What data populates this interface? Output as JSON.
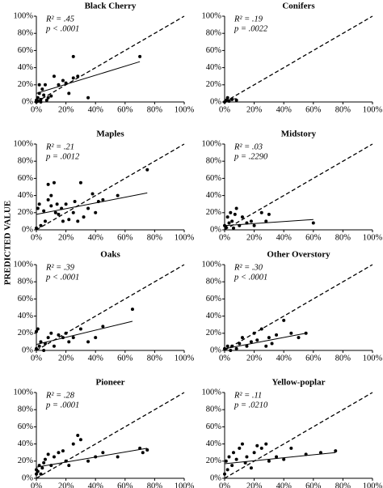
{
  "ylabel": "PREDICTED VALUE",
  "chart_data": [
    {
      "type": "scatter",
      "title": "Black Cherry",
      "annotations": [
        "R² = .45",
        "p < .0001"
      ],
      "x": [
        0,
        1,
        2,
        2,
        3,
        4,
        5,
        6,
        7,
        8,
        10,
        12,
        15,
        18,
        20,
        22,
        25,
        25,
        28,
        35,
        70,
        0,
        1,
        3
      ],
      "values": [
        2,
        5,
        20,
        10,
        3,
        15,
        8,
        20,
        2,
        5,
        7,
        30,
        20,
        25,
        22,
        10,
        53,
        28,
        30,
        5,
        53,
        0,
        1,
        0
      ],
      "fit_line": {
        "x": [
          0,
          70
        ],
        "values": [
          10,
          47
        ]
      },
      "reference_line": {
        "x": [
          0,
          100
        ],
        "values": [
          0,
          100
        ]
      },
      "xlim": [
        0,
        100
      ],
      "ylim": [
        0,
        100
      ],
      "xticks": [
        {
          "value": 0,
          "label": "0%"
        },
        {
          "value": 20,
          "label": "20%"
        },
        {
          "value": 40,
          "label": "40%"
        },
        {
          "value": 60,
          "label": "60%"
        },
        {
          "value": 80,
          "label": "80%"
        },
        {
          "value": 100,
          "label": "100%"
        }
      ],
      "yticks": [
        {
          "value": 0,
          "label": "0%"
        },
        {
          "value": 20,
          "label": "20%"
        },
        {
          "value": 40,
          "label": "40%"
        },
        {
          "value": 60,
          "label": "60%"
        },
        {
          "value": 80,
          "label": "80%"
        },
        {
          "value": 100,
          "label": "100%"
        }
      ]
    },
    {
      "type": "scatter",
      "title": "Conifers",
      "annotations": [
        "R² = .19",
        "p = .0022"
      ],
      "x": [
        0,
        1,
        2,
        3,
        5,
        8
      ],
      "values": [
        0,
        2,
        5,
        1,
        3,
        2
      ],
      "fit_line": {
        "x": [
          0,
          8
        ],
        "values": [
          2,
          4
        ]
      },
      "reference_line": {
        "x": [
          0,
          100
        ],
        "values": [
          0,
          100
        ]
      },
      "xlim": [
        0,
        100
      ],
      "ylim": [
        0,
        100
      ],
      "xticks": [
        {
          "value": 0,
          "label": "0%"
        },
        {
          "value": 20,
          "label": "20%"
        },
        {
          "value": 40,
          "label": "40%"
        },
        {
          "value": 60,
          "label": "60%"
        },
        {
          "value": 80,
          "label": "80%"
        },
        {
          "value": 100,
          "label": "100%"
        }
      ],
      "yticks": [
        {
          "value": 0,
          "label": "0%"
        },
        {
          "value": 20,
          "label": "20%"
        },
        {
          "value": 40,
          "label": "40%"
        },
        {
          "value": 60,
          "label": "60%"
        },
        {
          "value": 80,
          "label": "80%"
        },
        {
          "value": 100,
          "label": "100%"
        }
      ]
    },
    {
      "type": "scatter",
      "title": "Maples",
      "annotations": [
        "R² = .21",
        "p = .0012"
      ],
      "x": [
        0,
        1,
        2,
        3,
        5,
        6,
        8,
        8,
        10,
        10,
        12,
        13,
        14,
        15,
        17,
        18,
        20,
        22,
        25,
        26,
        28,
        30,
        32,
        35,
        38,
        40,
        42,
        45,
        55,
        75
      ],
      "values": [
        2,
        25,
        30,
        5,
        22,
        10,
        35,
        53,
        40,
        28,
        55,
        20,
        30,
        18,
        25,
        10,
        30,
        12,
        20,
        33,
        10,
        55,
        15,
        25,
        42,
        20,
        33,
        35,
        40,
        70
      ],
      "fit_line": {
        "x": [
          0,
          75
        ],
        "values": [
          18,
          43
        ]
      },
      "reference_line": {
        "x": [
          0,
          100
        ],
        "values": [
          0,
          100
        ]
      },
      "xlim": [
        0,
        100
      ],
      "ylim": [
        0,
        100
      ],
      "xticks": [
        {
          "value": 0,
          "label": "0%"
        },
        {
          "value": 20,
          "label": "20%"
        },
        {
          "value": 40,
          "label": "40%"
        },
        {
          "value": 60,
          "label": "60%"
        },
        {
          "value": 80,
          "label": "80%"
        },
        {
          "value": 100,
          "label": "100%"
        }
      ],
      "yticks": [
        {
          "value": 0,
          "label": "0%"
        },
        {
          "value": 20,
          "label": "20%"
        },
        {
          "value": 40,
          "label": "40%"
        },
        {
          "value": 60,
          "label": "60%"
        },
        {
          "value": 80,
          "label": "80%"
        },
        {
          "value": 100,
          "label": "100%"
        }
      ]
    },
    {
      "type": "scatter",
      "title": "Midstory",
      "annotations": [
        "R² = .03",
        "p = .2290"
      ],
      "x": [
        0,
        1,
        2,
        3,
        4,
        5,
        6,
        7,
        8,
        10,
        12,
        15,
        18,
        20,
        25,
        28,
        30,
        60
      ],
      "values": [
        5,
        3,
        15,
        8,
        20,
        10,
        2,
        18,
        25,
        5,
        15,
        8,
        10,
        5,
        20,
        10,
        18,
        8
      ],
      "fit_line": {
        "x": [
          0,
          60
        ],
        "values": [
          5,
          12
        ]
      },
      "reference_line": {
        "x": [
          0,
          100
        ],
        "values": [
          0,
          100
        ]
      },
      "xlim": [
        0,
        100
      ],
      "ylim": [
        0,
        100
      ],
      "xticks": [
        {
          "value": 0,
          "label": "0%"
        },
        {
          "value": 20,
          "label": "20%"
        },
        {
          "value": 40,
          "label": "40%"
        },
        {
          "value": 60,
          "label": "60%"
        },
        {
          "value": 80,
          "label": "80%"
        },
        {
          "value": 100,
          "label": "100%"
        }
      ],
      "yticks": [
        {
          "value": 0,
          "label": "0%"
        },
        {
          "value": 20,
          "label": "20%"
        },
        {
          "value": 40,
          "label": "40%"
        },
        {
          "value": 60,
          "label": "60%"
        },
        {
          "value": 80,
          "label": "80%"
        },
        {
          "value": 100,
          "label": "100%"
        }
      ]
    },
    {
      "type": "scatter",
      "title": "Oaks",
      "annotations": [
        "R² = .39",
        "p < .0001"
      ],
      "x": [
        0,
        0,
        1,
        2,
        3,
        5,
        6,
        8,
        10,
        12,
        15,
        18,
        20,
        22,
        25,
        30,
        35,
        40,
        45,
        65
      ],
      "values": [
        2,
        22,
        25,
        5,
        10,
        0,
        8,
        15,
        20,
        5,
        18,
        15,
        20,
        10,
        15,
        25,
        10,
        15,
        28,
        48
      ],
      "fit_line": {
        "x": [
          0,
          65
        ],
        "values": [
          7,
          34
        ]
      },
      "reference_line": {
        "x": [
          0,
          100
        ],
        "values": [
          0,
          100
        ]
      },
      "xlim": [
        0,
        100
      ],
      "ylim": [
        0,
        100
      ],
      "xticks": [
        {
          "value": 0,
          "label": "0%"
        },
        {
          "value": 20,
          "label": "20%"
        },
        {
          "value": 40,
          "label": "40%"
        },
        {
          "value": 60,
          "label": "60%"
        },
        {
          "value": 80,
          "label": "80%"
        },
        {
          "value": 100,
          "label": "100%"
        }
      ],
      "yticks": [
        {
          "value": 0,
          "label": "0%"
        },
        {
          "value": 20,
          "label": "20%"
        },
        {
          "value": 40,
          "label": "40%"
        },
        {
          "value": 60,
          "label": "60%"
        },
        {
          "value": 80,
          "label": "80%"
        },
        {
          "value": 100,
          "label": "100%"
        }
      ]
    },
    {
      "type": "scatter",
      "title": "Other Overstory",
      "annotations": [
        "R² = .30",
        "p < .0001"
      ],
      "x": [
        0,
        2,
        4,
        5,
        8,
        10,
        12,
        15,
        18,
        20,
        22,
        25,
        28,
        30,
        32,
        35,
        40,
        45,
        50,
        55
      ],
      "values": [
        2,
        5,
        0,
        5,
        2,
        8,
        15,
        5,
        10,
        20,
        12,
        25,
        5,
        15,
        8,
        18,
        35,
        20,
        15,
        20
      ],
      "fit_line": {
        "x": [
          0,
          55
        ],
        "values": [
          2,
          20
        ]
      },
      "reference_line": {
        "x": [
          0,
          100
        ],
        "values": [
          0,
          100
        ]
      },
      "xlim": [
        0,
        100
      ],
      "ylim": [
        0,
        100
      ],
      "xticks": [
        {
          "value": 0,
          "label": "0%"
        },
        {
          "value": 20,
          "label": "20%"
        },
        {
          "value": 40,
          "label": "40%"
        },
        {
          "value": 60,
          "label": "60%"
        },
        {
          "value": 80,
          "label": "80%"
        },
        {
          "value": 100,
          "label": "100%"
        }
      ],
      "yticks": [
        {
          "value": 0,
          "label": "0%"
        },
        {
          "value": 20,
          "label": "20%"
        },
        {
          "value": 40,
          "label": "40%"
        },
        {
          "value": 60,
          "label": "60%"
        },
        {
          "value": 80,
          "label": "80%"
        },
        {
          "value": 100,
          "label": "100%"
        }
      ]
    },
    {
      "type": "scatter",
      "title": "Pioneer",
      "annotations": [
        "R² = .28",
        "p = .0001"
      ],
      "x": [
        0,
        0,
        1,
        2,
        3,
        4,
        5,
        6,
        8,
        10,
        12,
        15,
        18,
        20,
        22,
        25,
        28,
        30,
        35,
        40,
        45,
        55,
        70,
        72,
        75
      ],
      "values": [
        5,
        10,
        8,
        15,
        5,
        12,
        18,
        22,
        28,
        15,
        25,
        30,
        32,
        20,
        15,
        40,
        50,
        45,
        20,
        25,
        30,
        25,
        35,
        30,
        33
      ],
      "fit_line": {
        "x": [
          0,
          75
        ],
        "values": [
          13,
          35
        ]
      },
      "reference_line": {
        "x": [
          0,
          100
        ],
        "values": [
          0,
          100
        ]
      },
      "xlim": [
        0,
        100
      ],
      "ylim": [
        0,
        100
      ],
      "xticks": [
        {
          "value": 0,
          "label": "0%"
        },
        {
          "value": 20,
          "label": "20%"
        },
        {
          "value": 40,
          "label": "40%"
        },
        {
          "value": 60,
          "label": "60%"
        },
        {
          "value": 80,
          "label": "80%"
        },
        {
          "value": 100,
          "label": "100%"
        }
      ],
      "yticks": [
        {
          "value": 0,
          "label": "0%"
        },
        {
          "value": 20,
          "label": "20%"
        },
        {
          "value": 40,
          "label": "40%"
        },
        {
          "value": 60,
          "label": "60%"
        },
        {
          "value": 80,
          "label": "80%"
        },
        {
          "value": 100,
          "label": "100%"
        }
      ]
    },
    {
      "type": "scatter",
      "title": "Yellow-poplar",
      "annotations": [
        "R² = .11",
        "p = .0210"
      ],
      "x": [
        0,
        1,
        2,
        3,
        5,
        6,
        8,
        10,
        12,
        14,
        15,
        18,
        20,
        22,
        25,
        28,
        30,
        35,
        40,
        45,
        55,
        65,
        75
      ],
      "values": [
        5,
        20,
        10,
        25,
        15,
        30,
        22,
        35,
        40,
        18,
        25,
        12,
        30,
        38,
        35,
        40,
        20,
        25,
        22,
        35,
        28,
        30,
        32
      ],
      "fit_line": {
        "x": [
          0,
          75
        ],
        "values": [
          17,
          30
        ]
      },
      "reference_line": {
        "x": [
          0,
          100
        ],
        "values": [
          0,
          100
        ]
      },
      "xlim": [
        0,
        100
      ],
      "ylim": [
        0,
        100
      ],
      "xticks": [
        {
          "value": 0,
          "label": "0%"
        },
        {
          "value": 20,
          "label": "20%"
        },
        {
          "value": 40,
          "label": "40%"
        },
        {
          "value": 60,
          "label": "60%"
        },
        {
          "value": 80,
          "label": "80%"
        },
        {
          "value": 100,
          "label": "100%"
        }
      ],
      "yticks": [
        {
          "value": 0,
          "label": "0%"
        },
        {
          "value": 20,
          "label": "20%"
        },
        {
          "value": 40,
          "label": "40%"
        },
        {
          "value": 60,
          "label": "60%"
        },
        {
          "value": 80,
          "label": "80%"
        },
        {
          "value": 100,
          "label": "100%"
        }
      ]
    }
  ]
}
